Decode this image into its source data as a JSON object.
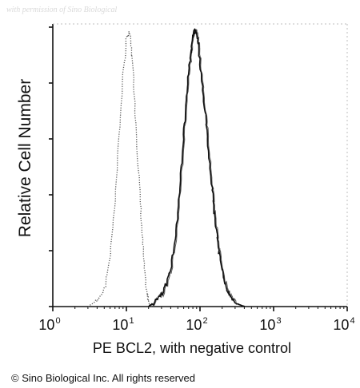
{
  "watermark": "with permission of Sino Biological",
  "copyright": "© Sino Biological Inc. All rights reserved",
  "chart_data": {
    "type": "line",
    "title": "",
    "xlabel": "PE BCL2, with negative control",
    "ylabel": "Relative Cell Number",
    "xscale": "log",
    "xlim": [
      1,
      10000
    ],
    "ylim": [
      0,
      1
    ],
    "xticks": [
      {
        "value": 1,
        "base": "10",
        "exp": "0"
      },
      {
        "value": 10,
        "base": "10",
        "exp": "1"
      },
      {
        "value": 100,
        "base": "10",
        "exp": "2"
      },
      {
        "value": 1000,
        "base": "10",
        "exp": "3"
      },
      {
        "value": 10000,
        "base": "10",
        "exp": "4"
      }
    ],
    "grid": false,
    "legend": "none",
    "series": [
      {
        "style": "dotted",
        "color": "#555555",
        "x": [
          3,
          4,
          5,
          6,
          7,
          8,
          9,
          10,
          11,
          12,
          13,
          14,
          15,
          16,
          17,
          18,
          19,
          20,
          22
        ],
        "y": [
          0.0,
          0.02,
          0.06,
          0.18,
          0.38,
          0.62,
          0.84,
          0.97,
          0.99,
          0.9,
          0.74,
          0.58,
          0.44,
          0.3,
          0.19,
          0.1,
          0.05,
          0.02,
          0.0
        ]
      },
      {
        "style": "solid",
        "color": "#111111",
        "x": [
          20,
          25,
          30,
          35,
          40,
          45,
          50,
          55,
          60,
          65,
          70,
          75,
          80,
          85,
          90,
          95,
          100,
          110,
          120,
          130,
          140,
          150,
          160,
          170,
          180,
          200,
          220,
          250,
          280,
          320,
          400
        ],
        "y": [
          0.0,
          0.02,
          0.04,
          0.08,
          0.14,
          0.22,
          0.34,
          0.48,
          0.62,
          0.74,
          0.84,
          0.92,
          0.98,
          1.0,
          0.99,
          0.95,
          0.88,
          0.78,
          0.67,
          0.57,
          0.48,
          0.4,
          0.32,
          0.26,
          0.2,
          0.13,
          0.08,
          0.04,
          0.02,
          0.01,
          0.0
        ]
      }
    ]
  }
}
